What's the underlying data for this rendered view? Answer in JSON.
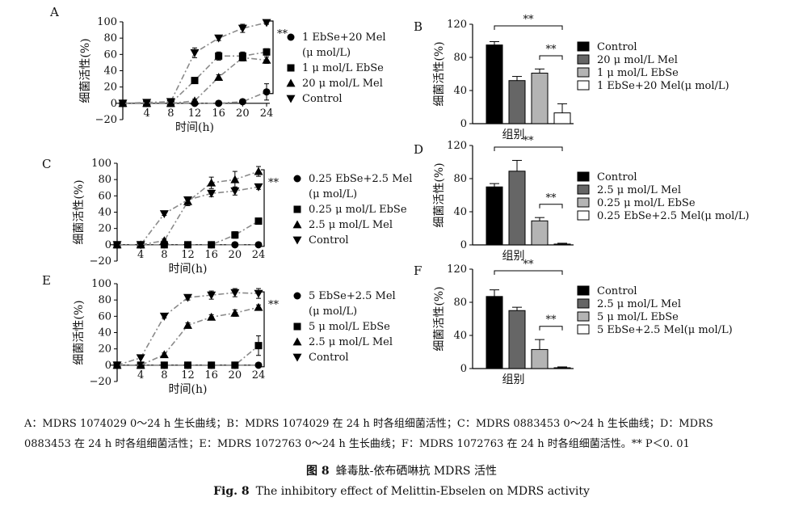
{
  "chart_data": [
    {
      "panel": "A",
      "type": "line",
      "ylabel": "细菌活性(%)",
      "xlabel": "时间(h)",
      "x": [
        0,
        4,
        8,
        12,
        16,
        20,
        24
      ],
      "xticks": [
        "4",
        "8",
        "12",
        "16",
        "20",
        "24"
      ],
      "yticks": [
        "−20",
        "0",
        "20",
        "40",
        "60",
        "80",
        "100"
      ],
      "ylim": [
        -20,
        100
      ],
      "series": [
        {
          "name": "1 EbSe+20 Mel",
          "name2": "(μ mol/L)",
          "marker": "circle",
          "values": [
            0,
            0,
            0,
            0,
            0,
            2,
            14
          ],
          "err": [
            0,
            0,
            0,
            0,
            0,
            2,
            10
          ]
        },
        {
          "name": "1 μ mol/L EbSe",
          "marker": "square",
          "values": [
            0,
            0,
            0,
            28,
            58,
            58,
            63
          ],
          "err": [
            0,
            0,
            0,
            3,
            5,
            5,
            4
          ]
        },
        {
          "name": "20 μ mol/L Mel",
          "marker": "triangle",
          "values": [
            0,
            0,
            0,
            3,
            32,
            56,
            53
          ],
          "err": [
            0,
            0,
            0,
            2,
            3,
            4,
            4
          ]
        },
        {
          "name": "Control",
          "marker": "triangle-down",
          "values": [
            0,
            1,
            2,
            62,
            80,
            92,
            99
          ],
          "err": [
            0,
            0,
            0,
            6,
            3,
            5,
            2
          ]
        }
      ],
      "significance": "**"
    },
    {
      "panel": "B",
      "type": "bar",
      "ylabel": "细菌活性(%)",
      "xlabel": "组别",
      "yticks": [
        "0",
        "40",
        "80",
        "120"
      ],
      "ylim": [
        0,
        120
      ],
      "categories": [
        "Control",
        "20 μ mol/L Mel",
        "1 μ mol/L EbSe",
        "1 EbSe+20 Mel(μ mol/L)"
      ],
      "values": [
        95,
        52,
        61,
        13
      ],
      "errors": [
        4,
        5,
        5,
        11
      ],
      "fills": [
        "#000000",
        "#666666",
        "#b4b4b4",
        "#ffffff"
      ],
      "significance": [
        "**",
        "**"
      ]
    },
    {
      "panel": "C",
      "type": "line",
      "ylabel": "细菌活性(%)",
      "xlabel": "时间(h)",
      "x": [
        0,
        4,
        8,
        12,
        16,
        20,
        24
      ],
      "xticks": [
        "4",
        "8",
        "12",
        "16",
        "20",
        "24"
      ],
      "yticks": [
        "−20",
        "0",
        "20",
        "40",
        "60",
        "80",
        "100"
      ],
      "ylim": [
        -20,
        100
      ],
      "series": [
        {
          "name": "0.25 EbSe+2.5 Mel",
          "name2": "(μ mol/L)",
          "marker": "circle",
          "values": [
            0,
            0,
            0,
            0,
            0,
            0,
            0
          ],
          "err": [
            0,
            0,
            0,
            0,
            0,
            0,
            0
          ]
        },
        {
          "name": "0.25 μ mol/L EbSe",
          "marker": "square",
          "values": [
            0,
            0,
            0,
            0,
            0,
            12,
            29
          ],
          "err": [
            0,
            0,
            0,
            0,
            0,
            4,
            2
          ]
        },
        {
          "name": "2.5 μ mol/L Mel",
          "marker": "triangle",
          "values": [
            0,
            0,
            5,
            53,
            76,
            80,
            90
          ],
          "err": [
            0,
            0,
            2,
            5,
            7,
            10,
            6
          ]
        },
        {
          "name": "Control",
          "marker": "triangle-down",
          "values": [
            0,
            0,
            38,
            55,
            63,
            66,
            71
          ],
          "err": [
            0,
            0,
            2,
            3,
            4,
            5,
            3
          ]
        }
      ],
      "significance": "**"
    },
    {
      "panel": "D",
      "type": "bar",
      "ylabel": "细菌活性(%)",
      "xlabel": "组别",
      "yticks": [
        "0",
        "40",
        "80",
        "120"
      ],
      "ylim": [
        0,
        120
      ],
      "categories": [
        "Control",
        "2.5 μ mol/L Mel",
        "0.25 μ mol/L EbSe",
        "0.25 EbSe+2.5 Mel(μ mol/L)"
      ],
      "values": [
        70,
        89,
        29,
        1
      ],
      "errors": [
        4,
        13,
        4,
        1
      ],
      "fills": [
        "#000000",
        "#666666",
        "#b4b4b4",
        "#ffffff"
      ],
      "significance": [
        "**",
        "**"
      ]
    },
    {
      "panel": "E",
      "type": "line",
      "ylabel": "细菌活性(%)",
      "xlabel": "时间(h)",
      "x": [
        0,
        4,
        8,
        12,
        16,
        20,
        24
      ],
      "xticks": [
        "4",
        "8",
        "12",
        "16",
        "20",
        "24"
      ],
      "yticks": [
        "−20",
        "0",
        "20",
        "40",
        "60",
        "80",
        "100"
      ],
      "ylim": [
        -20,
        100
      ],
      "series": [
        {
          "name": "5 EbSe+2.5 Mel",
          "name2": "(μ mol/L)",
          "marker": "circle",
          "values": [
            0,
            0,
            0,
            0,
            0,
            0,
            0
          ],
          "err": [
            0,
            0,
            0,
            0,
            0,
            0,
            0
          ]
        },
        {
          "name": "5 μ mol/L EbSe",
          "marker": "square",
          "values": [
            0,
            0,
            0,
            0,
            0,
            0,
            24
          ],
          "err": [
            0,
            0,
            0,
            0,
            0,
            0,
            12
          ]
        },
        {
          "name": "2.5 μ mol/L Mel",
          "marker": "triangle",
          "values": [
            0,
            0,
            13,
            49,
            59,
            64,
            71
          ],
          "err": [
            0,
            0,
            2,
            3,
            3,
            4,
            3
          ]
        },
        {
          "name": "Control",
          "marker": "triangle-down",
          "values": [
            0,
            9,
            60,
            83,
            86,
            89,
            88
          ],
          "err": [
            0,
            0,
            2,
            3,
            5,
            5,
            6
          ]
        }
      ],
      "significance": "**"
    },
    {
      "panel": "F",
      "type": "bar",
      "ylabel": "细菌活性(%)",
      "xlabel": "组别",
      "yticks": [
        "0",
        "40",
        "80",
        "120"
      ],
      "ylim": [
        0,
        120
      ],
      "categories": [
        "Control",
        "2.5 μ mol/L Mel",
        "5 μ mol/L EbSe",
        "5 EbSe+2.5 Mel(μ mol/L)"
      ],
      "values": [
        87,
        70,
        23,
        1
      ],
      "errors": [
        8,
        4,
        12,
        1
      ],
      "fills": [
        "#000000",
        "#666666",
        "#b4b4b4",
        "#ffffff"
      ],
      "significance": [
        "**",
        "**"
      ]
    }
  ],
  "caption": {
    "line1": "A：MDRS 1074029 0～24 h 生长曲线；B：MDRS 1074029 在 24 h 时各组细菌活性；C：MDRS 0883453 0～24 h 生长曲线；D：MDRS",
    "line2": "0883453 在 24 h 时各组细菌活性；E：MDRS 1072763 0～24 h 生长曲线；F：MDRS 1072763 在 24 h 时各组细菌活性。** P＜0. 01",
    "figure_label_cn": "图 8",
    "title_cn": "蜂毒肽-依布硒啉抗 MDRS 活性",
    "figure_label_en": "Fig. 8",
    "title_en": "The inhibitory effect of Melittin-Ebselen on MDRS activity"
  }
}
